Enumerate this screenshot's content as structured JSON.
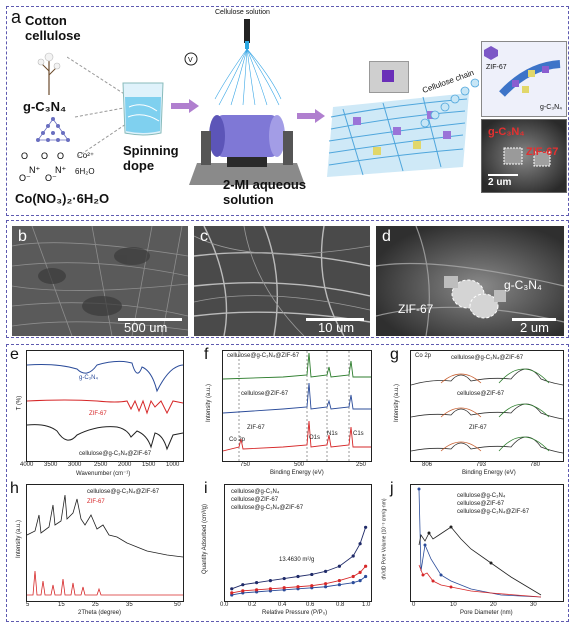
{
  "figure": {
    "panel_labels": {
      "a": "a",
      "b": "b",
      "c": "c",
      "d": "d",
      "e": "e",
      "f": "f",
      "g": "g",
      "h": "h",
      "i": "i",
      "j": "j"
    },
    "schematic": {
      "cotton_cellulose": "Cotton\ncellulose",
      "gcn": "g-C₃N₄",
      "cobalt_salt": "Co(NO₃)₂·6H₂O",
      "co2": "Co²⁺",
      "h2o6": "6H₂O",
      "spinning_dope": "Spinning\ndope",
      "cellulose_solution": "Cellulose solution",
      "mi_solution": "2-MI aqueous\nsolution",
      "cellulose_chain": "Cellulose chain",
      "zif67_label": "ZIF-67",
      "gcn_label_small": "g-C₃N₄",
      "sem_gcn": "g-C₃N₄",
      "sem_zif": "ZIF-67",
      "sem_scale": "2 um",
      "switch_symbol": "V"
    },
    "sem_panels": {
      "b_scale": "500 um",
      "c_scale": "10 um",
      "d_scale": "2 um",
      "d_zif": "ZIF-67",
      "d_gcn": "g-C₃N₄"
    },
    "panel_e": {
      "xlabel": "Wavenumber (cm⁻¹)",
      "ylabel": "T (%)",
      "xticks": [
        "4000",
        "3500",
        "3000",
        "2500",
        "2000",
        "1500",
        "1000"
      ],
      "legend": [
        "g-C₃N₄",
        "ZIF-67",
        "cellulose@g-C₃N₄@ZIF-67"
      ],
      "colors": [
        "#2b4c9a",
        "#d62728",
        "#222222"
      ]
    },
    "panel_f": {
      "xlabel": "Binding Energy (eV)",
      "ylabel": "Intensity (a.u.)",
      "xticks": [
        "750",
        "500",
        "250"
      ],
      "legend": [
        "cellulose@g-C₃N₄@ZIF-67",
        "cellulose@ZIF-67",
        "ZIF-67"
      ],
      "peaks": [
        "Co 2p",
        "O1s",
        "N1s",
        "C1s"
      ]
    },
    "panel_g": {
      "title": "Co 2p",
      "xlabel": "Binding Energy (eV)",
      "ylabel": "Intensity (a.u.)",
      "xticks": [
        "806",
        "793",
        "780"
      ],
      "legend": [
        "cellulose@g-C₃N₄@ZIF-67",
        "cellulose@ZIF-67",
        "ZIF-67"
      ]
    },
    "panel_h": {
      "xlabel": "2Theta (degree)",
      "ylabel": "Intensity (a.u.)",
      "xticks": [
        "5",
        "10",
        "15",
        "20",
        "25",
        "30",
        "35",
        "40",
        "45",
        "50"
      ],
      "legend": [
        "cellulose@g-C₃N₄@ZIF-67",
        "ZIF-67"
      ]
    },
    "panel_i": {
      "xlabel": "Relative Pressure (P/P₀)",
      "ylabel": "Quantity Adsorbed (cm³/g)",
      "xticks": [
        "0.0",
        "0.2",
        "0.4",
        "0.6",
        "0.8",
        "1.0"
      ],
      "yticks": [
        "0",
        "5",
        "10",
        "15",
        "20",
        "25",
        "30",
        "35",
        "40"
      ],
      "legend": [
        "cellulose@g-C₃N₄",
        "cellulose@ZIF-67",
        "cellulose@g-C₃N₄@ZIF-67"
      ],
      "annotation": "13.4630 m²/g"
    },
    "panel_j": {
      "xlabel": "Pore Diameter (nm)",
      "ylabel": "dV/dD Pore Volume (10⁻³ cm³/g·nm)",
      "xticks": [
        "0",
        "5",
        "10",
        "15",
        "20",
        "25",
        "30",
        "35"
      ],
      "legend": [
        "cellulose@g-C₃N₄",
        "cellulose@ZIF-67",
        "cellulose@g-C₃N₄@ZIF-67"
      ]
    }
  },
  "chart_data": [
    {
      "type": "line",
      "title": "",
      "xlabel": "Relative Pressure (P/P₀)",
      "ylabel": "Quantity Adsorbed (cm³/g)",
      "ylim": [
        0,
        40
      ],
      "series": [
        {
          "name": "cellulose@g-C₃N₄",
          "x": [
            0.02,
            0.1,
            0.2,
            0.3,
            0.4,
            0.5,
            0.6,
            0.7,
            0.8,
            0.9,
            0.95,
            0.99
          ],
          "values": [
            1,
            2,
            2.5,
            3,
            3.5,
            4,
            4.5,
            5,
            6,
            7,
            8,
            10
          ]
        },
        {
          "name": "cellulose@ZIF-67",
          "x": [
            0.02,
            0.1,
            0.2,
            0.3,
            0.4,
            0.5,
            0.6,
            0.7,
            0.8,
            0.9,
            0.95,
            0.99
          ],
          "values": [
            2,
            3,
            3.5,
            4,
            4.5,
            5,
            5.5,
            6.5,
            8,
            10,
            12,
            15
          ]
        },
        {
          "name": "cellulose@g-C₃N₄@ZIF-67",
          "x": [
            0.02,
            0.1,
            0.2,
            0.3,
            0.4,
            0.5,
            0.6,
            0.7,
            0.8,
            0.9,
            0.95,
            0.99
          ],
          "values": [
            4,
            6,
            7,
            8,
            9,
            10,
            11,
            12.5,
            15,
            20,
            26,
            34
          ]
        }
      ]
    }
  ]
}
